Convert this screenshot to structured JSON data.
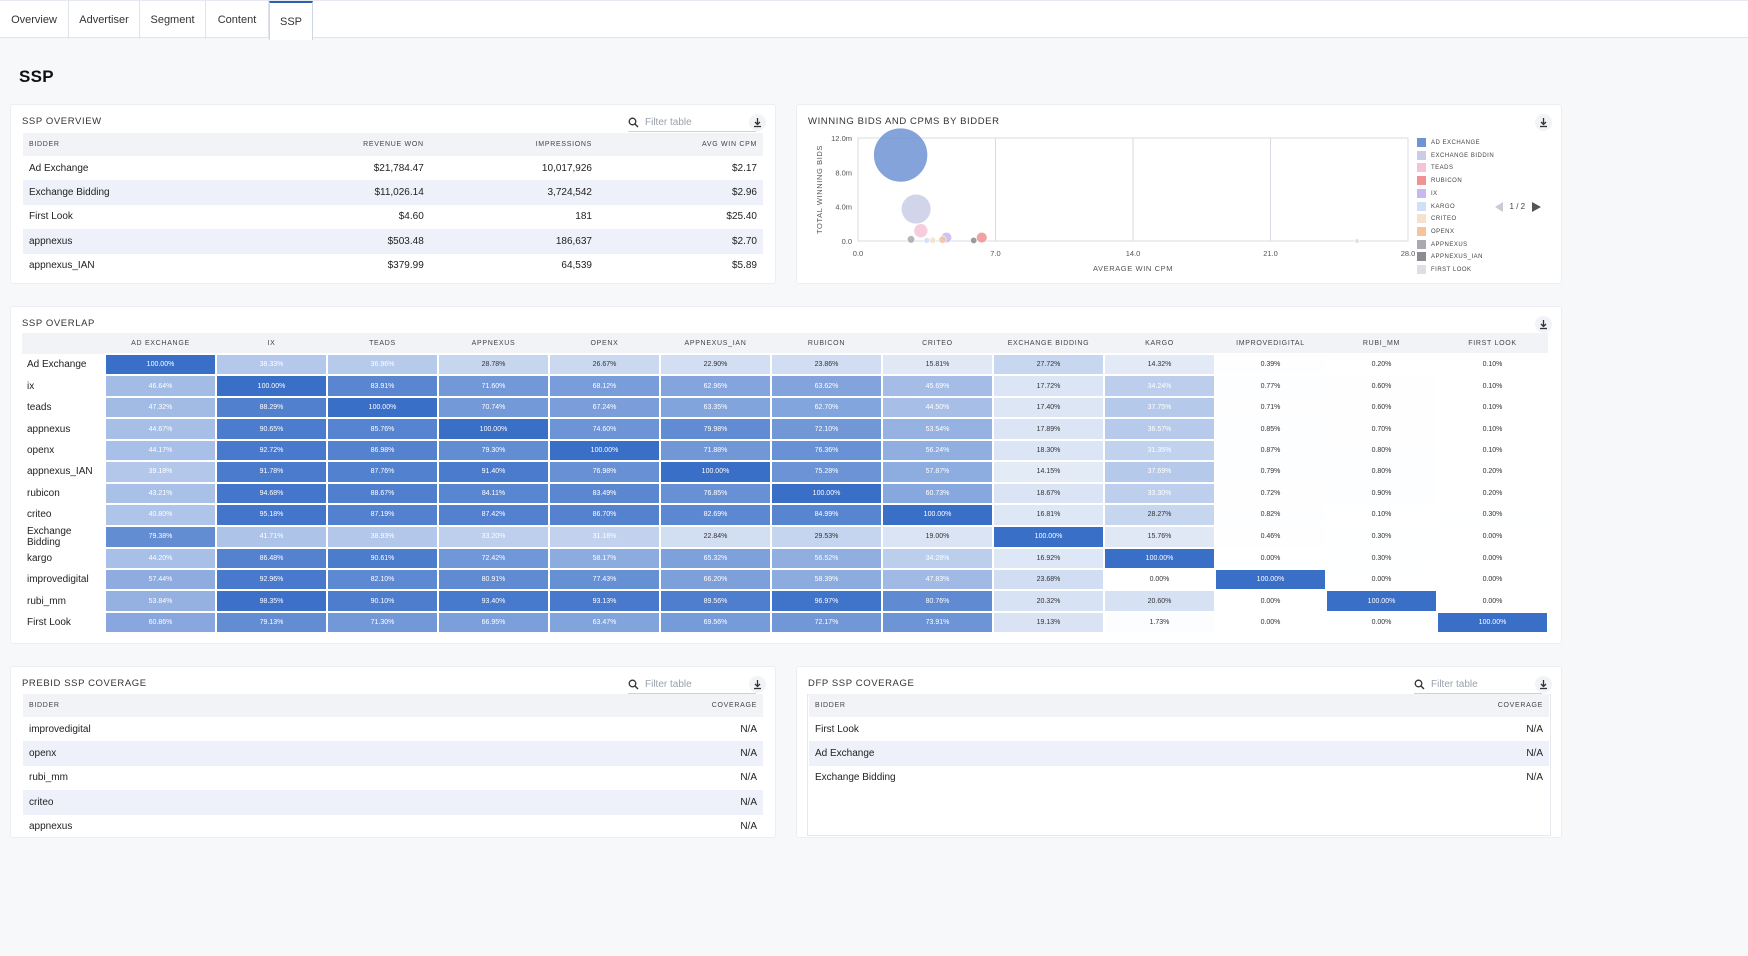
{
  "tabs": [
    "Overview",
    "Advertiser",
    "Segment",
    "Content",
    "SSP"
  ],
  "page_title": "SSP",
  "ssp_overview": {
    "title": "SSP OVERVIEW",
    "filter_placeholder": "Filter table",
    "columns": [
      "BIDDER",
      "REVENUE WON",
      "IMPRESSIONS",
      "AVG WIN CPM"
    ],
    "rows": [
      [
        "Ad Exchange",
        "$21,784.47",
        "10,017,926",
        "$2.17"
      ],
      [
        "Exchange Bidding",
        "$11,026.14",
        "3,724,542",
        "$2.96"
      ],
      [
        "First Look",
        "$4.60",
        "181",
        "$25.40"
      ],
      [
        "appnexus",
        "$503.48",
        "186,637",
        "$2.70"
      ],
      [
        "appnexus_IAN",
        "$379.99",
        "64,539",
        "$5.89"
      ]
    ]
  },
  "winning_bids": {
    "title": "WINNING BIDS AND CPMS BY BIDDER",
    "pager": "1 / 2",
    "legend": [
      {
        "name": "AD EXCHANGE",
        "color": "#6f93d3"
      },
      {
        "name": "EXCHANGE BIDDIN",
        "color": "#c9cee6"
      },
      {
        "name": "TEADS",
        "color": "#f4c4d6"
      },
      {
        "name": "RUBICON",
        "color": "#f0928f"
      },
      {
        "name": "IX",
        "color": "#c6b8f0"
      },
      {
        "name": "KARGO",
        "color": "#cfe1f8"
      },
      {
        "name": "CRITEO",
        "color": "#f6e0cf"
      },
      {
        "name": "OPENX",
        "color": "#f3c49e"
      },
      {
        "name": "APPNEXUS",
        "color": "#a8a9b1"
      },
      {
        "name": "APPNEXUS_IAN",
        "color": "#8a8b93"
      },
      {
        "name": "FIRST LOOK",
        "color": "#dedfe2"
      }
    ]
  },
  "chart_data": {
    "type": "scatter",
    "title": "WINNING BIDS AND CPMS BY BIDDER",
    "xlabel": "AVERAGE WIN CPM",
    "ylabel": "TOTAL WINNING BIDS",
    "xlim": [
      0,
      28
    ],
    "ylim": [
      0,
      12000000
    ],
    "x_ticks": [
      "0.0",
      "7.0",
      "14.0",
      "21.0",
      "28.0"
    ],
    "y_ticks": [
      "0.0",
      "4.0m",
      "8.0m",
      "12.0m"
    ],
    "legend_position": "right",
    "points": [
      {
        "name": "AD EXCHANGE",
        "x": 2.17,
        "y": 10017926,
        "size": 1.0
      },
      {
        "name": "EXCHANGE BIDDIN",
        "x": 2.96,
        "y": 3724542,
        "size": 0.55
      },
      {
        "name": "TEADS",
        "x": 3.2,
        "y": 1200000,
        "size": 0.26
      },
      {
        "name": "IX",
        "x": 4.5,
        "y": 400000,
        "size": 0.2
      },
      {
        "name": "RUBICON",
        "x": 6.3,
        "y": 400000,
        "size": 0.2
      },
      {
        "name": "OPENX",
        "x": 4.3,
        "y": 150000,
        "size": 0.14
      },
      {
        "name": "CRITEO",
        "x": 3.8,
        "y": 100000,
        "size": 0.12
      },
      {
        "name": "KARGO",
        "x": 3.5,
        "y": 80000,
        "size": 0.11
      },
      {
        "name": "APPNEXUS",
        "x": 2.7,
        "y": 186637,
        "size": 0.14
      },
      {
        "name": "APPNEXUS_IAN",
        "x": 5.89,
        "y": 64539,
        "size": 0.12
      },
      {
        "name": "FIRST LOOK",
        "x": 25.4,
        "y": 181,
        "size": 0.09
      }
    ]
  },
  "ssp_overlap": {
    "title": "SSP OVERLAP",
    "columns": [
      "AD EXCHANGE",
      "IX",
      "TEADS",
      "APPNEXUS",
      "OPENX",
      "APPNEXUS_IAN",
      "RUBICON",
      "CRITEO",
      "EXCHANGE BIDDING",
      "KARGO",
      "IMPROVEDIGITAL",
      "RUBI_MM",
      "FIRST LOOK"
    ],
    "rows": [
      {
        "label": "Ad Exchange",
        "values": [
          100.0,
          38.33,
          36.96,
          28.78,
          26.67,
          22.9,
          23.86,
          15.81,
          27.72,
          14.32,
          0.39,
          0.2,
          0.1
        ]
      },
      {
        "label": "ix",
        "values": [
          46.64,
          100.0,
          83.91,
          71.6,
          68.12,
          62.96,
          63.62,
          45.69,
          17.72,
          34.24,
          0.77,
          0.6,
          0.1
        ]
      },
      {
        "label": "teads",
        "values": [
          47.32,
          88.29,
          100.0,
          70.74,
          67.24,
          63.35,
          62.7,
          44.5,
          17.4,
          37.75,
          0.71,
          0.6,
          0.1
        ]
      },
      {
        "label": "appnexus",
        "values": [
          44.67,
          90.65,
          85.76,
          100.0,
          74.6,
          79.98,
          72.1,
          53.54,
          17.89,
          36.57,
          0.85,
          0.7,
          0.1
        ]
      },
      {
        "label": "openx",
        "values": [
          44.17,
          92.72,
          86.98,
          79.3,
          100.0,
          71.88,
          76.36,
          56.24,
          18.3,
          31.35,
          0.87,
          0.8,
          0.1
        ]
      },
      {
        "label": "appnexus_IAN",
        "values": [
          39.18,
          91.78,
          87.76,
          91.4,
          76.98,
          100.0,
          75.28,
          57.87,
          14.15,
          37.69,
          0.79,
          0.8,
          0.2
        ]
      },
      {
        "label": "rubicon",
        "values": [
          43.21,
          94.68,
          88.67,
          84.11,
          83.49,
          76.85,
          100.0,
          60.73,
          18.67,
          33.3,
          0.72,
          0.9,
          0.2
        ]
      },
      {
        "label": "criteo",
        "values": [
          40.8,
          95.18,
          87.19,
          87.42,
          86.7,
          82.69,
          84.99,
          100.0,
          16.81,
          28.27,
          0.82,
          0.1,
          0.3
        ]
      },
      {
        "label": "Exchange Bidding",
        "values": [
          79.38,
          41.71,
          38.93,
          33.2,
          31.18,
          22.84,
          29.53,
          19.0,
          100.0,
          15.76,
          0.46,
          0.3,
          0.0
        ]
      },
      {
        "label": "kargo",
        "values": [
          44.2,
          86.48,
          90.61,
          72.42,
          58.17,
          65.32,
          56.52,
          34.28,
          16.92,
          100.0,
          0.0,
          0.3,
          0.0
        ]
      },
      {
        "label": "improvedigital",
        "values": [
          57.44,
          92.96,
          82.1,
          80.91,
          77.43,
          66.2,
          58.39,
          47.83,
          23.68,
          0.0,
          100.0,
          0.0,
          0.0
        ]
      },
      {
        "label": "rubi_mm",
        "values": [
          53.84,
          98.35,
          90.1,
          93.4,
          93.13,
          89.56,
          96.97,
          80.76,
          20.32,
          20.6,
          0.0,
          100.0,
          0.0
        ]
      },
      {
        "label": "First Look",
        "values": [
          60.86,
          79.13,
          71.3,
          66.95,
          63.47,
          69.56,
          72.17,
          73.91,
          19.13,
          1.73,
          0.0,
          0.0,
          100.0
        ]
      }
    ]
  },
  "prebid_coverage": {
    "title": "PREBID SSP COVERAGE",
    "filter_placeholder": "Filter table",
    "columns": [
      "BIDDER",
      "COVERAGE"
    ],
    "rows": [
      [
        "improvedigital",
        "N/A"
      ],
      [
        "openx",
        "N/A"
      ],
      [
        "rubi_mm",
        "N/A"
      ],
      [
        "criteo",
        "N/A"
      ],
      [
        "appnexus",
        "N/A"
      ]
    ]
  },
  "dfp_coverage": {
    "title": "DFP SSP COVERAGE",
    "filter_placeholder": "Filter table",
    "columns": [
      "BIDDER",
      "COVERAGE"
    ],
    "rows": [
      [
        "First Look",
        "N/A"
      ],
      [
        "Ad Exchange",
        "N/A"
      ],
      [
        "Exchange Bidding",
        "N/A"
      ]
    ]
  },
  "colors": {
    "heat_max": "#3a6fc8",
    "heat_min": "#ffffff",
    "accent": "#2f5fb0"
  }
}
